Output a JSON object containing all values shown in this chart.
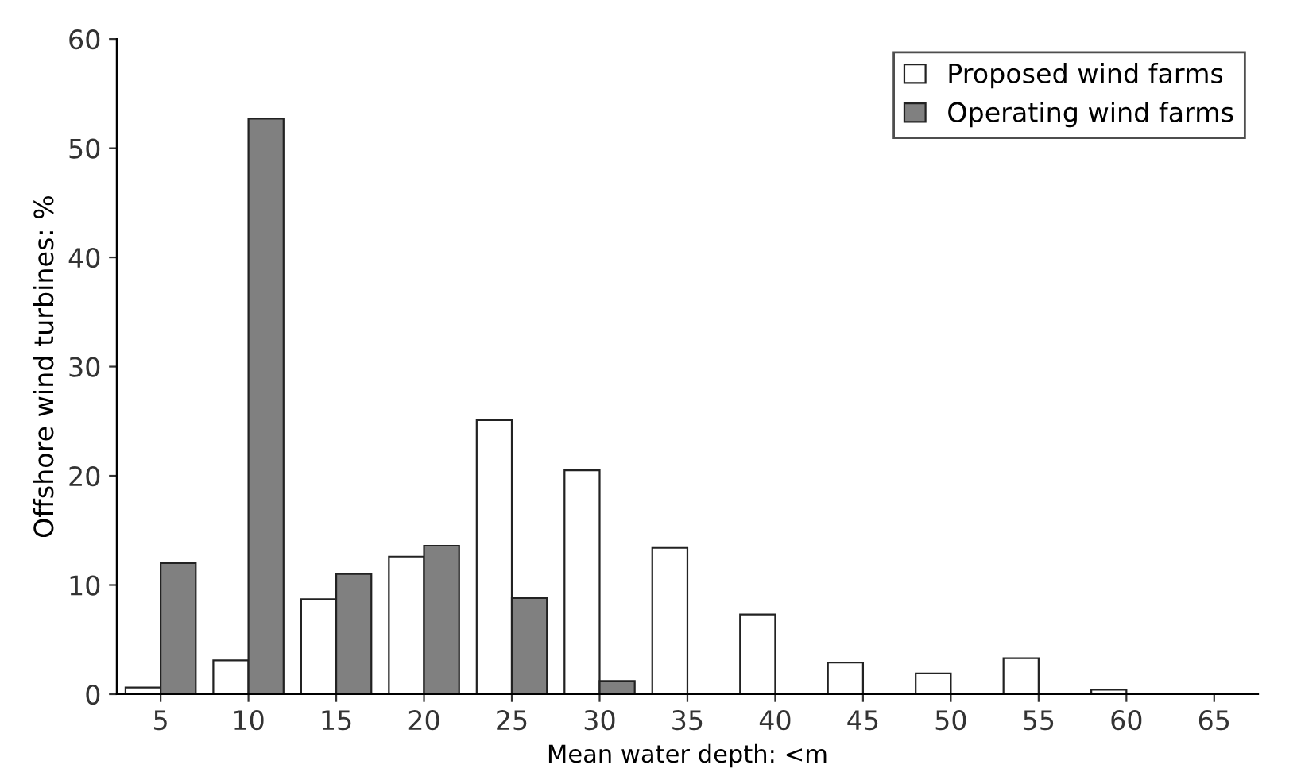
{
  "chart_data": {
    "type": "bar",
    "xlabel": "Mean water depth: <m",
    "ylabel": "Offshore wind turbines: %",
    "categories": [
      "5",
      "10",
      "15",
      "20",
      "25",
      "30",
      "35",
      "40",
      "45",
      "50",
      "55",
      "60",
      "65"
    ],
    "series": [
      {
        "name": "Proposed wind farms",
        "color": "#ffffff",
        "values": [
          0.6,
          3.1,
          8.7,
          12.6,
          25.1,
          20.5,
          13.4,
          7.3,
          2.9,
          1.9,
          3.3,
          0.4,
          0
        ]
      },
      {
        "name": "Operating wind farms",
        "color": "#808080",
        "values": [
          12,
          52.7,
          11,
          13.6,
          8.8,
          1.2,
          0,
          0,
          0,
          0,
          0,
          0,
          0
        ]
      }
    ],
    "ylim": [
      0,
      60
    ],
    "yticks": [
      0,
      10,
      20,
      30,
      40,
      50,
      60
    ],
    "grid": false,
    "legend": "top right"
  }
}
